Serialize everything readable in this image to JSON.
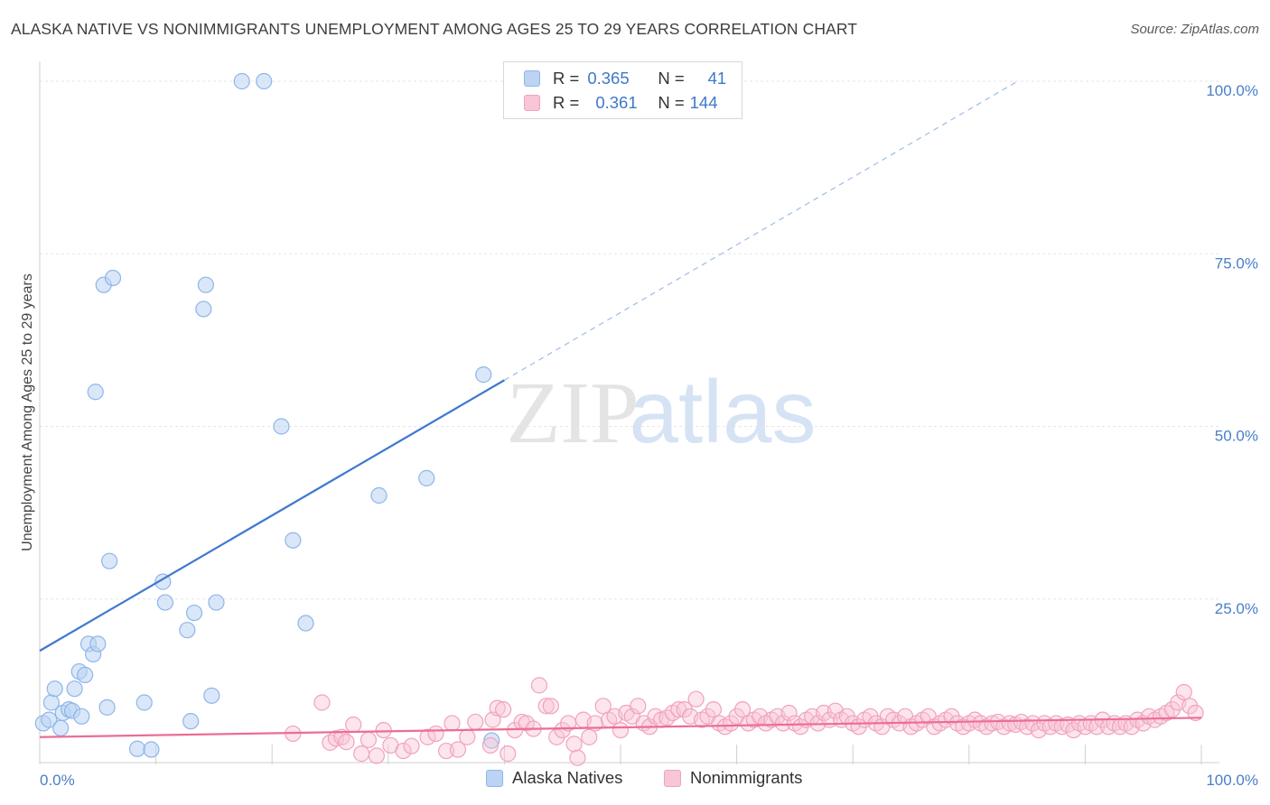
{
  "title": "ALASKA NATIVE VS NONIMMIGRANTS UNEMPLOYMENT AMONG AGES 25 TO 29 YEARS CORRELATION CHART",
  "source": "Source: ZipAtlas.com",
  "watermark": {
    "zip": "ZIP",
    "atlas": "atlas"
  },
  "legend": {
    "r_label": "R =",
    "n_label": "N =",
    "series": [
      {
        "name": "Alaska Natives",
        "r": "0.365",
        "n": "41",
        "color": "#8db6ea",
        "fill": "#bcd3f3"
      },
      {
        "name": "Nonimmigrants",
        "r": "0.361",
        "n": "144",
        "color": "#f0a3bc",
        "fill": "#f8c6d6"
      }
    ]
  },
  "chart_data": {
    "type": "scatter",
    "title": "ALASKA NATIVE VS NONIMMIGRANTS UNEMPLOYMENT AMONG AGES 25 TO 29 YEARS CORRELATION CHART",
    "xlabel": "",
    "ylabel": "Unemployment Among Ages 25 to 29 years",
    "xlim": [
      0,
      100
    ],
    "ylim": [
      0,
      100
    ],
    "x_tick_labels": [
      "0.0%",
      "100.0%"
    ],
    "y_tick_labels": [
      "25.0%",
      "50.0%",
      "75.0%",
      "100.0%"
    ],
    "y_ticks": [
      25,
      50,
      75,
      100
    ],
    "series": [
      {
        "name": "Alaska Natives",
        "color": "#8db6ea",
        "points": [
          [
            0.3,
            7.0
          ],
          [
            0.8,
            7.5
          ],
          [
            1.0,
            10.0
          ],
          [
            1.3,
            12.0
          ],
          [
            1.8,
            6.3
          ],
          [
            2.0,
            8.5
          ],
          [
            2.5,
            9.0
          ],
          [
            2.8,
            8.8
          ],
          [
            3.0,
            12.0
          ],
          [
            3.4,
            14.5
          ],
          [
            3.6,
            8.0
          ],
          [
            3.9,
            14.0
          ],
          [
            4.2,
            18.5
          ],
          [
            4.6,
            17.0
          ],
          [
            5.0,
            18.5
          ],
          [
            5.5,
            70.5
          ],
          [
            5.8,
            9.3
          ],
          [
            4.8,
            55.0
          ],
          [
            6.3,
            71.5
          ],
          [
            6.0,
            30.5
          ],
          [
            8.4,
            3.3
          ],
          [
            9.0,
            10.0
          ],
          [
            9.6,
            3.2
          ],
          [
            10.6,
            27.5
          ],
          [
            10.8,
            24.5
          ],
          [
            12.7,
            20.5
          ],
          [
            13.0,
            7.3
          ],
          [
            13.3,
            23.0
          ],
          [
            14.1,
            67.0
          ],
          [
            14.3,
            70.5
          ],
          [
            14.8,
            11.0
          ],
          [
            15.2,
            24.5
          ],
          [
            17.4,
            100
          ],
          [
            19.3,
            100
          ],
          [
            20.8,
            50.0
          ],
          [
            21.8,
            33.5
          ],
          [
            22.9,
            21.5
          ],
          [
            29.2,
            40.0
          ],
          [
            33.3,
            42.5
          ],
          [
            38.2,
            57.5
          ],
          [
            38.9,
            4.5
          ]
        ]
      },
      {
        "name": "Nonimmigrants",
        "color": "#f0a3bc",
        "points": [
          [
            21.8,
            5.5
          ],
          [
            24.3,
            10.0
          ],
          [
            25.0,
            4.2
          ],
          [
            25.5,
            4.8
          ],
          [
            26.0,
            5.0
          ],
          [
            26.4,
            4.3
          ],
          [
            27.0,
            6.8
          ],
          [
            27.7,
            2.6
          ],
          [
            28.3,
            4.6
          ],
          [
            29.0,
            2.3
          ],
          [
            29.6,
            6.0
          ],
          [
            30.2,
            3.8
          ],
          [
            31.3,
            3.0
          ],
          [
            32.0,
            3.7
          ],
          [
            33.4,
            5.0
          ],
          [
            34.1,
            5.5
          ],
          [
            35.0,
            3.0
          ],
          [
            35.5,
            7.0
          ],
          [
            36.0,
            3.2
          ],
          [
            36.8,
            5.0
          ],
          [
            37.5,
            7.2
          ],
          [
            38.8,
            3.8
          ],
          [
            39.0,
            7.5
          ],
          [
            39.4,
            9.2
          ],
          [
            39.9,
            9.0
          ],
          [
            40.3,
            2.6
          ],
          [
            40.9,
            6.0
          ],
          [
            41.5,
            7.2
          ],
          [
            41.9,
            7.0
          ],
          [
            42.5,
            6.2
          ],
          [
            43.0,
            12.5
          ],
          [
            43.6,
            9.5
          ],
          [
            44.0,
            9.5
          ],
          [
            44.5,
            5.0
          ],
          [
            45.0,
            6.0
          ],
          [
            45.5,
            7.0
          ],
          [
            46.0,
            4.0
          ],
          [
            46.3,
            2.0
          ],
          [
            46.8,
            7.5
          ],
          [
            47.3,
            5.0
          ],
          [
            47.8,
            7.0
          ],
          [
            48.5,
            9.5
          ],
          [
            49.0,
            7.5
          ],
          [
            49.5,
            8.0
          ],
          [
            50.0,
            6.0
          ],
          [
            50.5,
            8.5
          ],
          [
            51.0,
            8.0
          ],
          [
            51.5,
            9.5
          ],
          [
            52.0,
            7.0
          ],
          [
            52.5,
            6.5
          ],
          [
            53.0,
            8.0
          ],
          [
            53.5,
            7.5
          ],
          [
            54.0,
            7.8
          ],
          [
            54.5,
            8.5
          ],
          [
            55.0,
            9.0
          ],
          [
            55.5,
            9.0
          ],
          [
            56.0,
            8.0
          ],
          [
            56.5,
            10.5
          ],
          [
            57.0,
            7.5
          ],
          [
            57.5,
            8.0
          ],
          [
            58.0,
            9.0
          ],
          [
            58.5,
            7.0
          ],
          [
            59.0,
            6.5
          ],
          [
            59.5,
            7.0
          ],
          [
            60.0,
            8.0
          ],
          [
            60.5,
            9.0
          ],
          [
            61.0,
            7.0
          ],
          [
            61.5,
            7.5
          ],
          [
            62.0,
            8.0
          ],
          [
            62.5,
            7.0
          ],
          [
            63.0,
            7.5
          ],
          [
            63.5,
            8.0
          ],
          [
            64.0,
            7.0
          ],
          [
            64.5,
            8.5
          ],
          [
            65.0,
            7.0
          ],
          [
            65.5,
            6.5
          ],
          [
            66.0,
            7.5
          ],
          [
            66.5,
            8.0
          ],
          [
            67.0,
            7.0
          ],
          [
            67.5,
            8.5
          ],
          [
            68.0,
            7.5
          ],
          [
            68.5,
            8.8
          ],
          [
            69.0,
            7.5
          ],
          [
            69.5,
            8.0
          ],
          [
            70.0,
            7.0
          ],
          [
            70.5,
            6.5
          ],
          [
            71.0,
            7.5
          ],
          [
            71.5,
            8.0
          ],
          [
            72.0,
            7.0
          ],
          [
            72.5,
            6.5
          ],
          [
            73.0,
            8.0
          ],
          [
            73.5,
            7.5
          ],
          [
            74.0,
            7.0
          ],
          [
            74.5,
            8.0
          ],
          [
            75.0,
            6.5
          ],
          [
            75.5,
            7.0
          ],
          [
            76.0,
            7.5
          ],
          [
            76.5,
            8.0
          ],
          [
            77.0,
            6.5
          ],
          [
            77.5,
            7.0
          ],
          [
            78.0,
            7.5
          ],
          [
            78.5,
            8.0
          ],
          [
            79.0,
            7.0
          ],
          [
            79.5,
            6.5
          ],
          [
            80.0,
            7.0
          ],
          [
            80.5,
            7.5
          ],
          [
            81.0,
            7.0
          ],
          [
            81.5,
            6.5
          ],
          [
            82.0,
            7.0
          ],
          [
            82.5,
            7.2
          ],
          [
            83.0,
            6.5
          ],
          [
            83.5,
            7.0
          ],
          [
            84.0,
            6.8
          ],
          [
            84.5,
            7.2
          ],
          [
            85.0,
            6.5
          ],
          [
            85.5,
            7.0
          ],
          [
            86.0,
            6.0
          ],
          [
            86.5,
            7.0
          ],
          [
            87.0,
            6.5
          ],
          [
            87.5,
            7.0
          ],
          [
            88.0,
            6.5
          ],
          [
            88.5,
            6.8
          ],
          [
            89.0,
            6.0
          ],
          [
            89.5,
            7.0
          ],
          [
            90.0,
            6.5
          ],
          [
            90.5,
            7.0
          ],
          [
            91.0,
            6.5
          ],
          [
            91.5,
            7.5
          ],
          [
            92.0,
            6.5
          ],
          [
            92.5,
            7.0
          ],
          [
            93.0,
            6.5
          ],
          [
            93.5,
            7.0
          ],
          [
            94.0,
            6.5
          ],
          [
            94.5,
            7.5
          ],
          [
            95.0,
            7.0
          ],
          [
            95.5,
            8.0
          ],
          [
            96.0,
            7.5
          ],
          [
            96.5,
            8.0
          ],
          [
            97.0,
            8.5
          ],
          [
            97.5,
            9.0
          ],
          [
            98.0,
            10.0
          ],
          [
            98.5,
            11.5
          ],
          [
            99.0,
            9.5
          ],
          [
            99.5,
            8.5
          ]
        ]
      }
    ],
    "trend_lines": [
      {
        "series": "Alaska Natives",
        "color": "#3f78d0",
        "intercept": 17.5,
        "slope": 0.98,
        "solid_to_x": 40,
        "dashed_to_x": 100
      },
      {
        "series": "Nonimmigrants",
        "color": "#ec6d94",
        "intercept": 5.0,
        "slope": 0.028,
        "solid_to_x": 100
      }
    ],
    "grid": true
  }
}
